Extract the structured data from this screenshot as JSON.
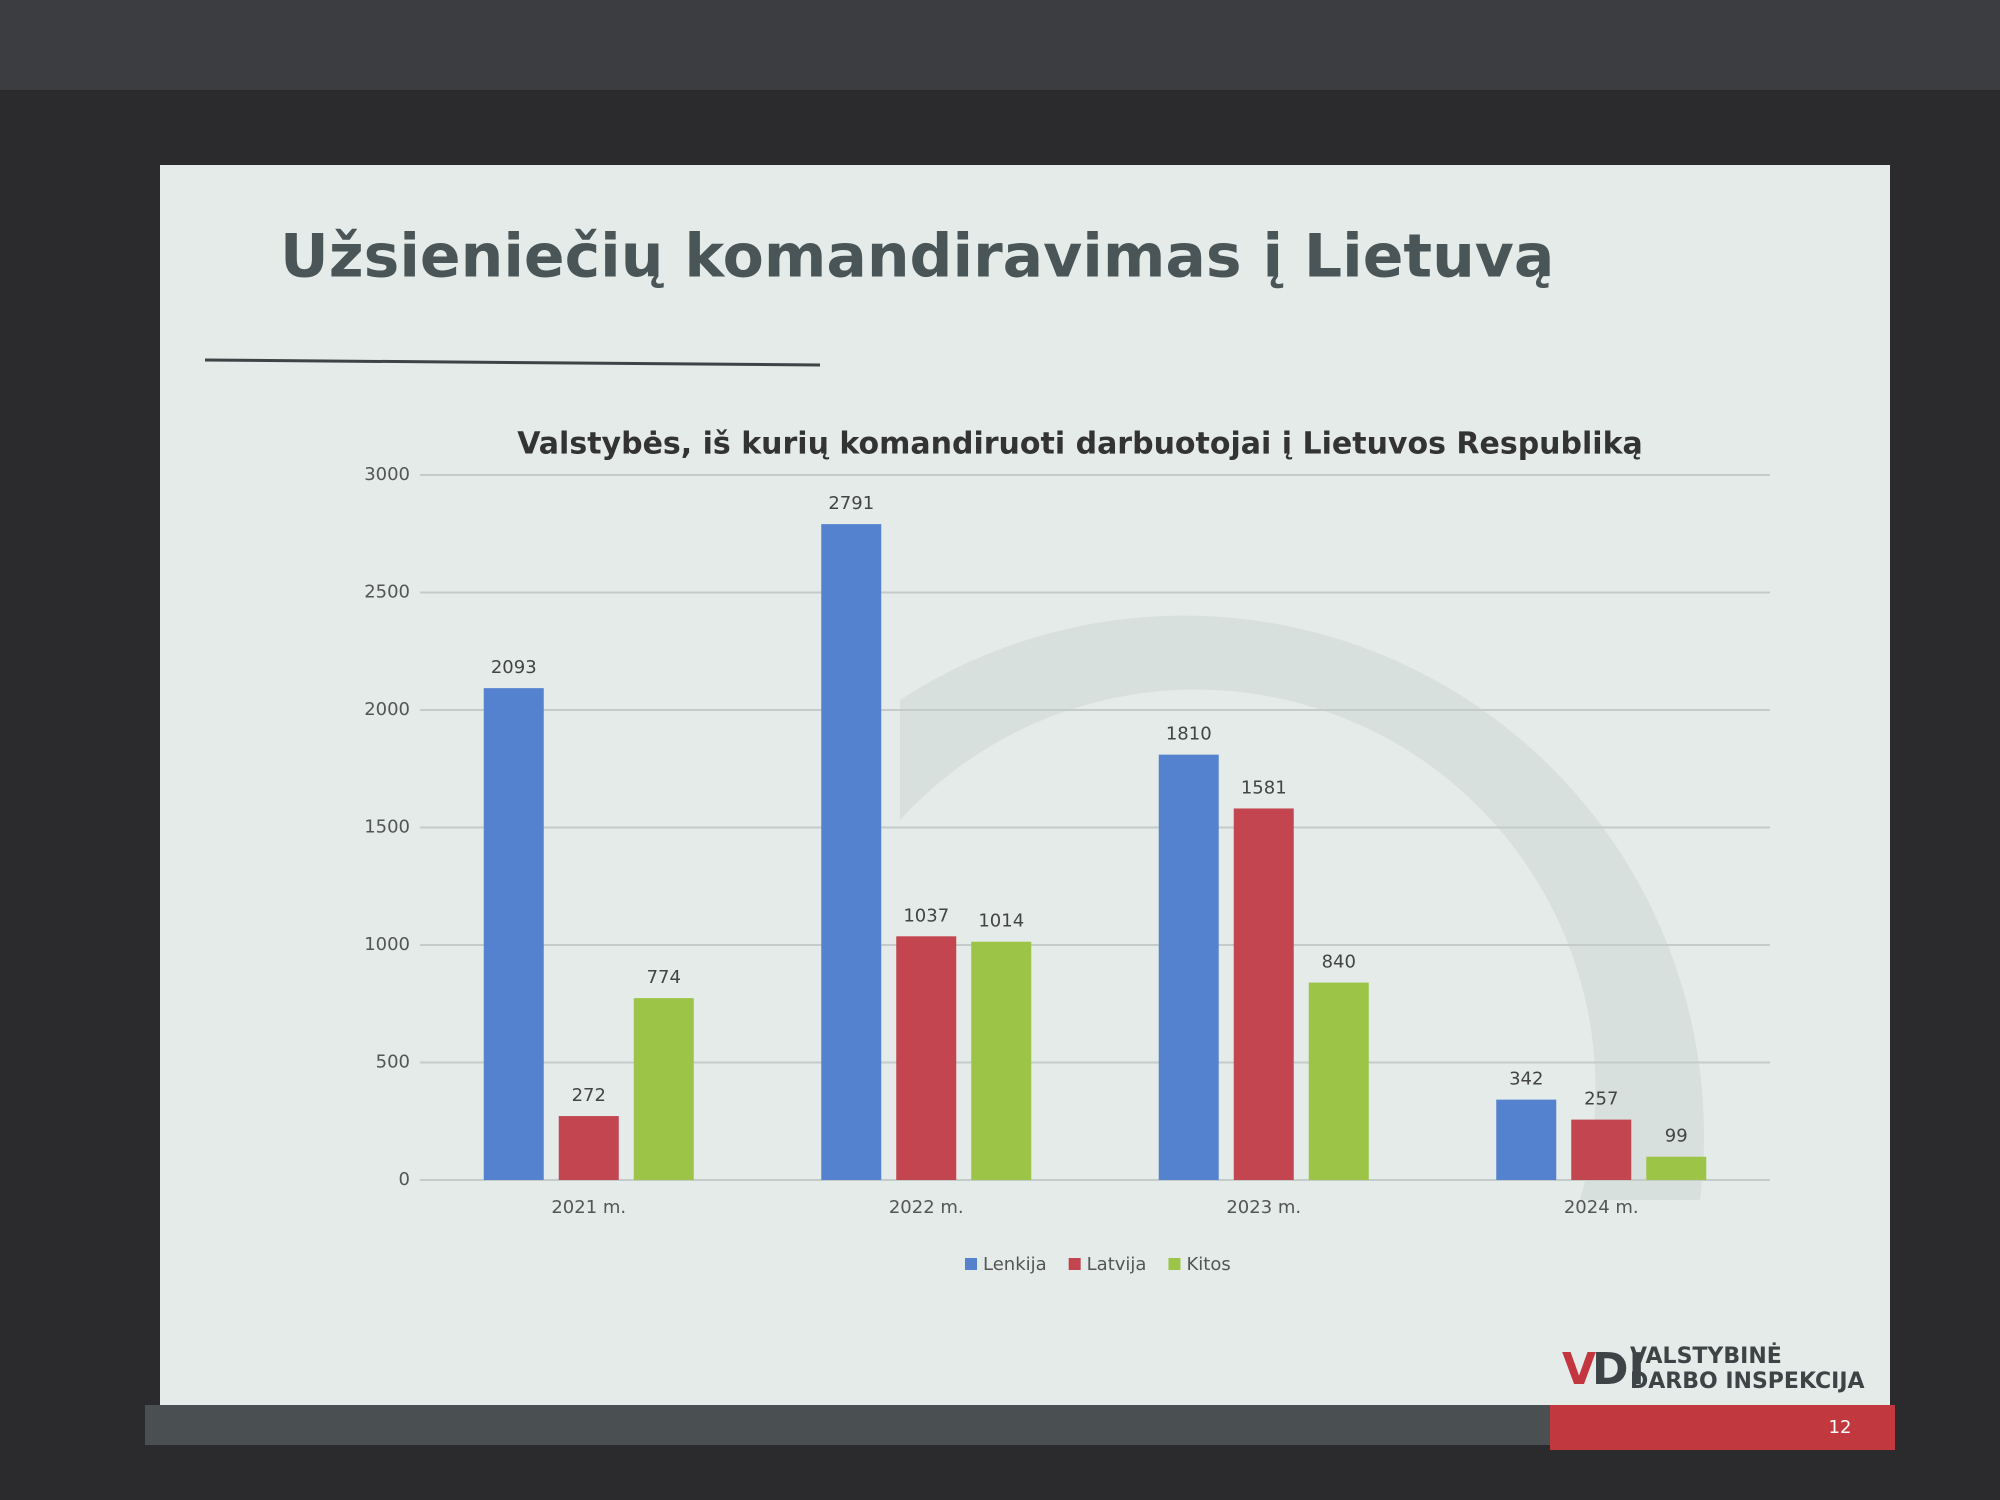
{
  "slide_title": "Užsieniečių komandiravimas į Lietuvą",
  "logo": [
    "VALSTYBINĖ",
    "DARBO INSPEKCIJA"
  ],
  "page_number": "12",
  "chart_data": {
    "type": "bar",
    "title": "Valstybės, iš kurių komandiruoti darbuotojai į Lietuvos Respubliką",
    "categories": [
      "2021 m.",
      "2022 m.",
      "2023 m.",
      "2024 m."
    ],
    "series": [
      {
        "name": "Lenkija",
        "color": "#5482cf",
        "values": [
          2093,
          2791,
          1810,
          342
        ]
      },
      {
        "name": "Latvija",
        "color": "#c3454f",
        "values": [
          272,
          1037,
          1581,
          257
        ]
      },
      {
        "name": "Kitos",
        "color": "#9cc446",
        "values": [
          774,
          1014,
          840,
          99
        ]
      }
    ],
    "ylim": [
      0,
      3000
    ],
    "yticks": [
      0,
      500,
      1000,
      1500,
      2000,
      2500,
      3000
    ],
    "grid": true,
    "legend": "bottom"
  }
}
